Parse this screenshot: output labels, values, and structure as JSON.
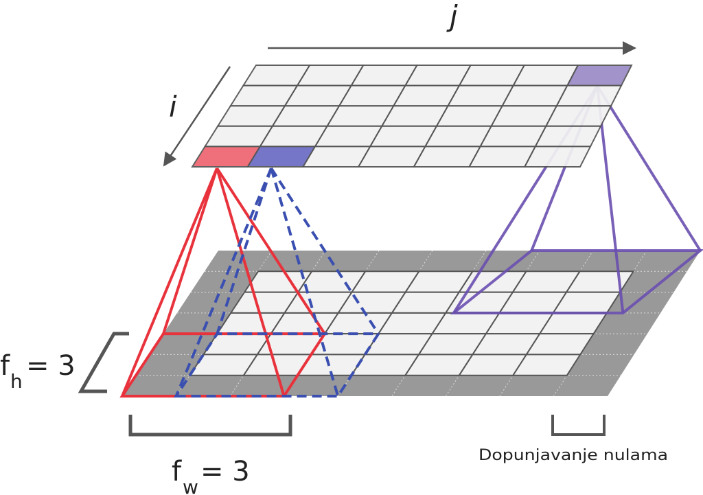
{
  "labels": {
    "j": "j",
    "i": "i",
    "fh": "f",
    "fh_sub": "h",
    "fh_eq": "= 3",
    "fw": "f",
    "fw_sub": "w",
    "fw_eq": "= 3",
    "padding": "Dopunjavanje nulama"
  }
}
